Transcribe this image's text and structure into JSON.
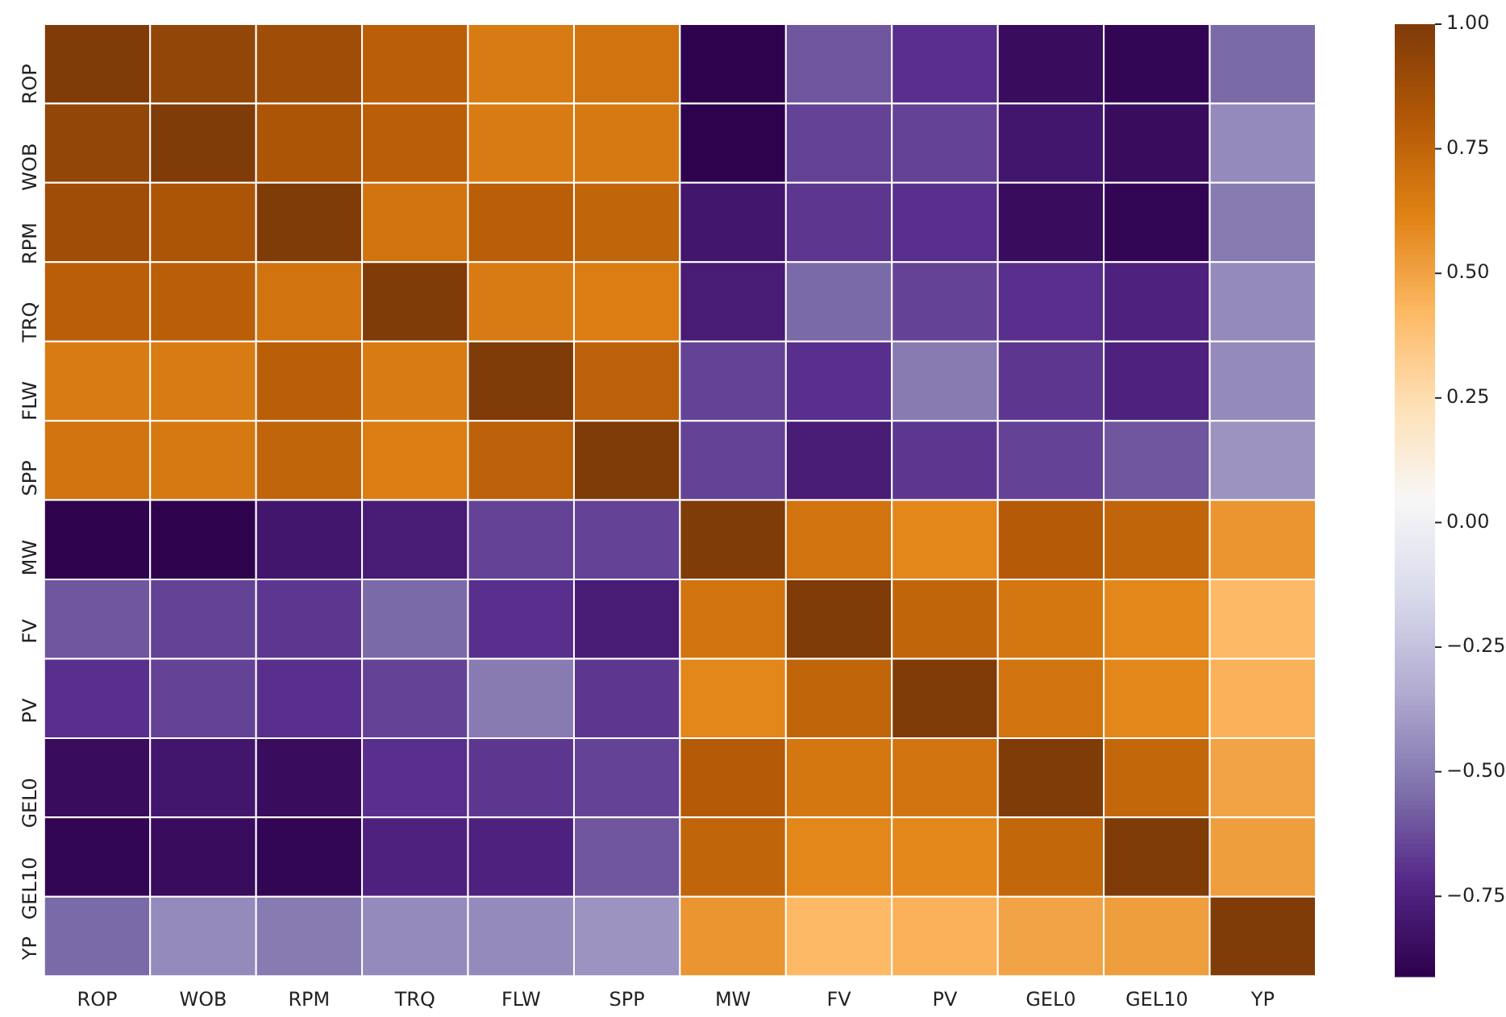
{
  "chart_data": {
    "type": "heatmap",
    "categories": [
      "ROP",
      "WOB",
      "RPM",
      "TRQ",
      "FLW",
      "SPP",
      "MW",
      "FV",
      "PV",
      "GEL0",
      "GEL10",
      "YP"
    ],
    "y_categories": [
      "ROP",
      "WOB",
      "RPM",
      "TRQ",
      "FLW",
      "SPP",
      "MW",
      "FV",
      "PV",
      "GEL0",
      "GEL10",
      "YP"
    ],
    "cells": [
      [
        1,
        0.93,
        0.88,
        0.78,
        0.65,
        0.68,
        -0.9,
        -0.6,
        -0.7,
        -0.85,
        -0.88,
        -0.55
      ],
      [
        0.93,
        1,
        0.83,
        0.78,
        0.65,
        0.66,
        -0.9,
        -0.65,
        -0.65,
        -0.8,
        -0.85,
        -0.45
      ],
      [
        0.88,
        0.83,
        1,
        0.68,
        0.78,
        0.75,
        -0.8,
        -0.68,
        -0.7,
        -0.85,
        -0.88,
        -0.5
      ],
      [
        0.78,
        0.78,
        0.68,
        1,
        0.65,
        0.64,
        -0.78,
        -0.55,
        -0.65,
        -0.7,
        -0.75,
        -0.45
      ],
      [
        0.65,
        0.65,
        0.78,
        0.65,
        1,
        0.77,
        -0.65,
        -0.7,
        -0.5,
        -0.68,
        -0.75,
        -0.45
      ],
      [
        0.68,
        0.66,
        0.75,
        0.64,
        0.77,
        1,
        -0.65,
        -0.78,
        -0.68,
        -0.65,
        -0.6,
        -0.42
      ],
      [
        -0.9,
        -0.9,
        -0.8,
        -0.78,
        -0.65,
        -0.65,
        1,
        0.68,
        0.6,
        0.8,
        0.75,
        0.55
      ],
      [
        -0.6,
        -0.65,
        -0.68,
        -0.55,
        -0.7,
        -0.78,
        0.68,
        1,
        0.75,
        0.67,
        0.6,
        0.42
      ],
      [
        -0.7,
        -0.65,
        -0.7,
        -0.65,
        -0.5,
        -0.68,
        0.6,
        0.75,
        1,
        0.68,
        0.6,
        0.45
      ],
      [
        -0.85,
        -0.8,
        -0.85,
        -0.7,
        -0.68,
        -0.65,
        0.8,
        0.67,
        0.68,
        1,
        0.74,
        0.5
      ],
      [
        -0.88,
        -0.85,
        -0.88,
        -0.75,
        -0.75,
        -0.6,
        0.75,
        0.6,
        0.6,
        0.74,
        1,
        0.52
      ],
      [
        -0.55,
        -0.45,
        -0.5,
        -0.45,
        -0.45,
        -0.42,
        0.55,
        0.42,
        0.45,
        0.5,
        0.52,
        1
      ]
    ],
    "clim": [
      -0.91,
      1
    ],
    "cticks": [
      {
        "value": 1,
        "label": "1.00"
      },
      {
        "value": 0.75,
        "label": "0.75"
      },
      {
        "value": 0.5,
        "label": "0.50"
      },
      {
        "value": 0.25,
        "label": "0.25"
      },
      {
        "value": 0,
        "label": "0.00"
      },
      {
        "value": -0.25,
        "label": "−0.25"
      },
      {
        "value": -0.5,
        "label": "−0.50"
      },
      {
        "value": -0.75,
        "label": "−0.75"
      }
    ]
  }
}
